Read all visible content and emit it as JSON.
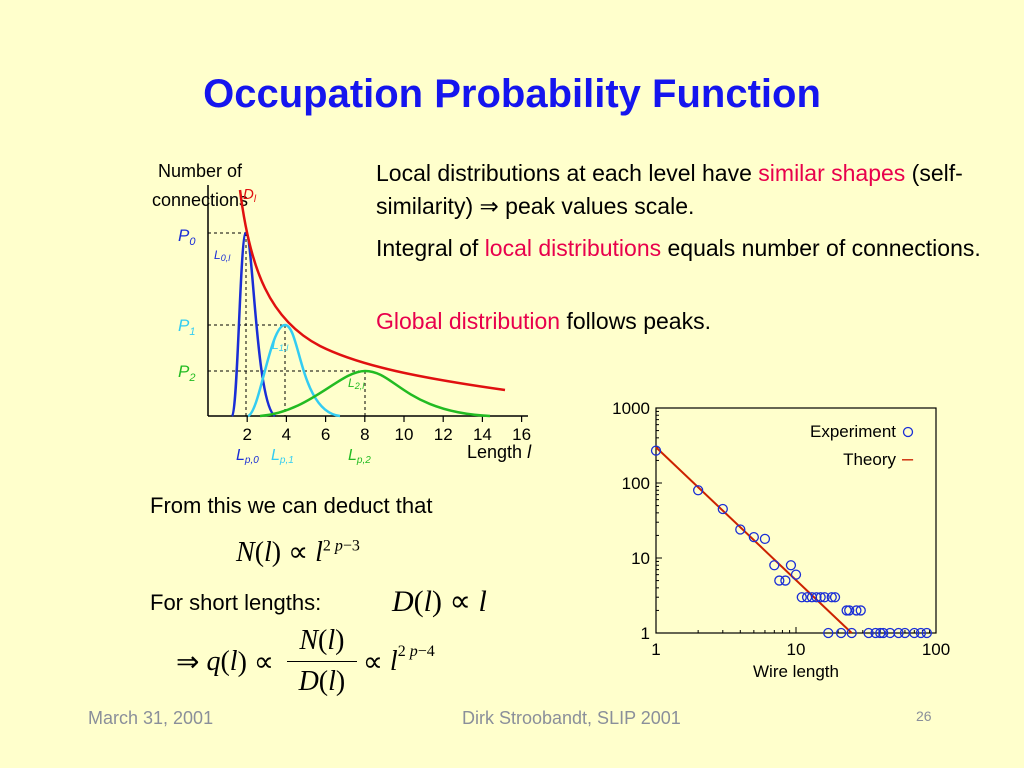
{
  "slide": {
    "title": "Occupation Probability Function",
    "bullets": [
      {
        "parts": [
          "Local distributions at each level have ",
          "similar shapes",
          " (self-similarity) ⇒ peak values scale."
        ]
      },
      {
        "parts": [
          "Integral of ",
          "local distributions",
          " equals number of connections."
        ]
      },
      {
        "parts": [
          "Global distribution",
          " follows peaks."
        ]
      }
    ],
    "deduct_text": "From this we can deduct that",
    "short_lengths_text": "For short lengths:",
    "footer": {
      "date": "March 31, 2001",
      "author": "Dirk Stroobandt, SLIP 2001",
      "page": "26"
    }
  },
  "chart_data": [
    {
      "type": "line",
      "ylabel": "Number of connections",
      "xlabel": "Length l",
      "x_ticks": [
        "2",
        "4",
        "6",
        "8",
        "10",
        "12",
        "14",
        "16"
      ],
      "global_label": "D",
      "series": [
        {
          "name": "L0,l",
          "color": "#1a2ed6",
          "peak_x": 2,
          "peak_label": "P0",
          "x_label": "Lp,0"
        },
        {
          "name": "L1,l",
          "color": "#33ccf2",
          "peak_x": 4,
          "peak_label": "P1",
          "x_label": "Lp,1"
        },
        {
          "name": "L2,l",
          "color": "#22bb22",
          "peak_x": 8,
          "peak_label": "P2",
          "x_label": "Lp,2"
        }
      ]
    },
    {
      "type": "scatter",
      "xlabel": "Wire length",
      "x_scale": "log",
      "y_scale": "log",
      "xlim": [
        1,
        100
      ],
      "ylim": [
        1,
        1000
      ],
      "x_ticks": [
        "1",
        "10",
        "100"
      ],
      "y_ticks": [
        "1",
        "10",
        "100",
        "1000"
      ],
      "legend": [
        {
          "label": "Experiment",
          "marker": "o",
          "color": "#1a2ed6"
        },
        {
          "label": "Theory",
          "marker": "–",
          "color": "#cc2200"
        }
      ],
      "series": [
        {
          "name": "Experiment",
          "points": [
            [
              1,
              270
            ],
            [
              2,
              80
            ],
            [
              3,
              45
            ],
            [
              4,
              24
            ],
            [
              5,
              19
            ],
            [
              6,
              18
            ],
            [
              7,
              8
            ],
            [
              7.6,
              5
            ],
            [
              8.4,
              5
            ],
            [
              9.2,
              8
            ],
            [
              10,
              6
            ],
            [
              11,
              3
            ],
            [
              12,
              3
            ],
            [
              13,
              3
            ],
            [
              14,
              3
            ],
            [
              15,
              3
            ],
            [
              16,
              3
            ],
            [
              18,
              3
            ],
            [
              19,
              3
            ],
            [
              23,
              2
            ],
            [
              24,
              2
            ],
            [
              27,
              2
            ],
            [
              29,
              2
            ],
            [
              17,
              1
            ],
            [
              21,
              1
            ],
            [
              25,
              1
            ],
            [
              33,
              1
            ],
            [
              37,
              1
            ],
            [
              40,
              1
            ],
            [
              42,
              1
            ],
            [
              47,
              1
            ],
            [
              54,
              1
            ],
            [
              60,
              1
            ],
            [
              70,
              1
            ],
            [
              78,
              1
            ],
            [
              86,
              1
            ]
          ]
        },
        {
          "name": "Theory",
          "points": [
            [
              1,
              300
            ],
            [
              25,
              1
            ]
          ]
        }
      ]
    }
  ]
}
